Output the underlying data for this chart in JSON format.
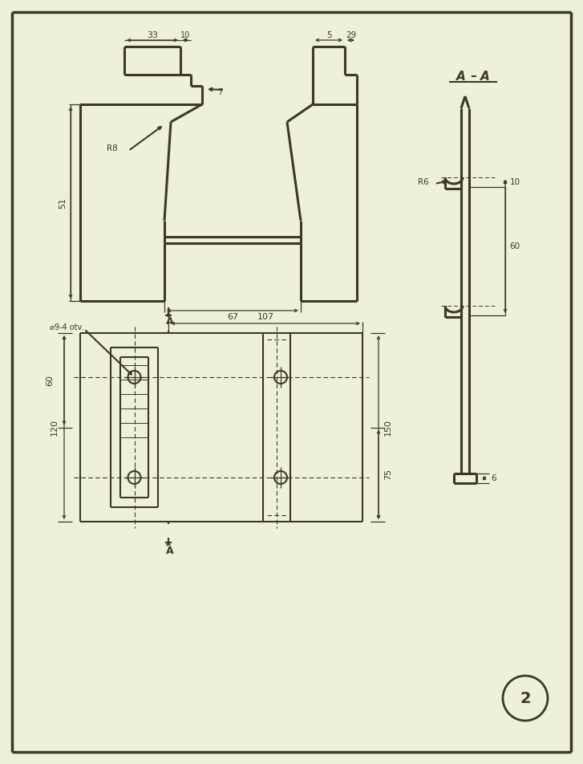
{
  "bg_color": "#eef0d8",
  "line_color": "#3a3a25",
  "lw": 1.5,
  "tlw": 2.2,
  "dlw": 0.9,
  "border": [
    15,
    15,
    712,
    937
  ]
}
